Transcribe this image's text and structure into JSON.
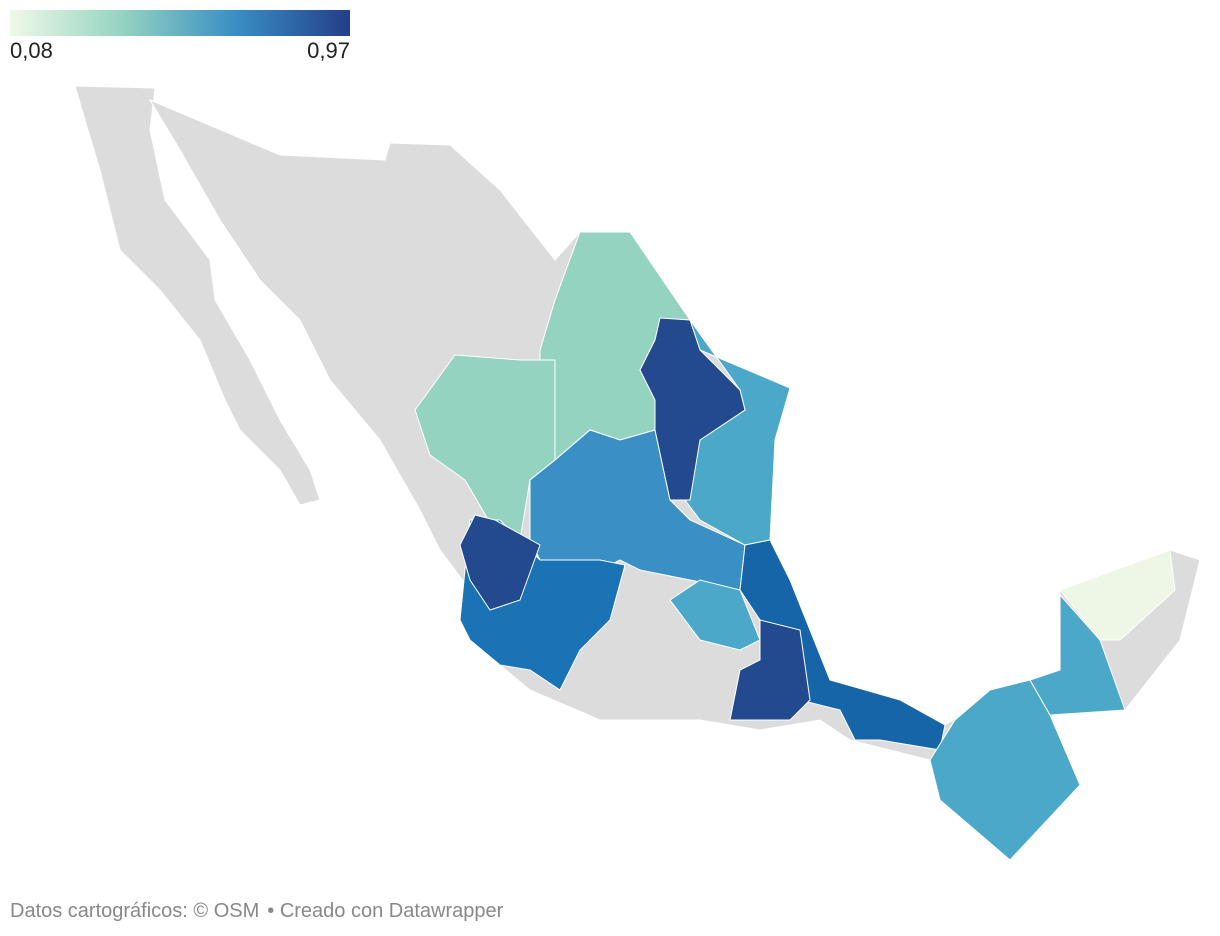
{
  "legend": {
    "min": {
      "value": 0.08,
      "label": "0,08"
    },
    "max": {
      "value": 0.97,
      "label": "0,97"
    }
  },
  "footer": {
    "source": "Datos cartográficos: © OSM",
    "credit": "• Creado con Datawrapper"
  }
}
